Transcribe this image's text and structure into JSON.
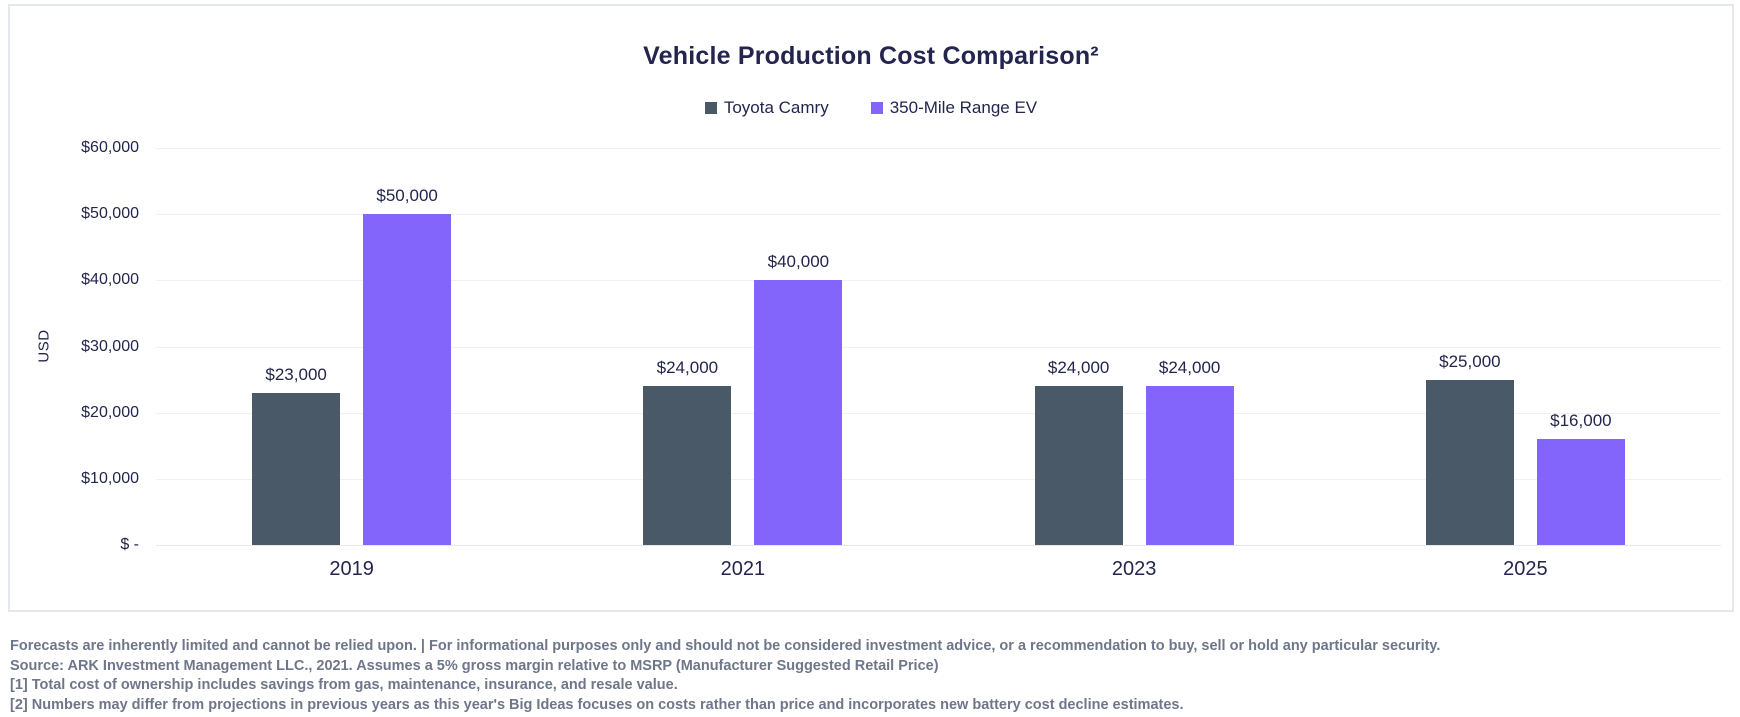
{
  "chart_data": {
    "type": "bar",
    "title": "Vehicle Production Cost Comparison²",
    "categories": [
      "2019",
      "2021",
      "2023",
      "2025"
    ],
    "series": [
      {
        "name": "Toyota Camry",
        "color": "#4a5968",
        "values": [
          23000,
          24000,
          24000,
          25000
        ],
        "value_labels": [
          "$23,000",
          "$24,000",
          "$24,000",
          "$25,000"
        ]
      },
      {
        "name": "350-Mile Range EV",
        "color": "#8465fb",
        "values": [
          50000,
          40000,
          24000,
          16000
        ],
        "value_labels": [
          "$50,000",
          "$40,000",
          "$24,000",
          "$16,000"
        ]
      }
    ],
    "xlabel": "",
    "ylabel": "USD",
    "ylim": [
      0,
      60000
    ],
    "ytick_step": 10000,
    "yticks": [
      "$60,000",
      "$50,000",
      "$40,000",
      "$30,000",
      "$20,000",
      "$10,000",
      "$ -"
    ],
    "grid": true,
    "legend_position": "top-center"
  },
  "colors": {
    "text_navy": "#23254e",
    "camry_bar": "#4a5968",
    "ev_bar": "#8465fb",
    "gridline": "#f0f1f4",
    "card_border": "#e4e8ee",
    "footnote_gray": "#6e7689"
  },
  "footnotes": {
    "lines": [
      "Forecasts are inherently limited and cannot be relied upon. | For informational purposes only and should not be considered investment advice, or a recommendation to buy, sell or hold any particular security.",
      "Source: ARK Investment Management LLC., 2021.  Assumes a 5% gross margin relative to MSRP (Manufacturer Suggested Retail Price)",
      "[1] Total cost of ownership includes savings from gas, maintenance, insurance, and resale value.",
      "[2] Numbers may differ from projections in previous years as this year's Big Ideas focuses on costs rather than price and incorporates new battery cost decline estimates."
    ]
  }
}
